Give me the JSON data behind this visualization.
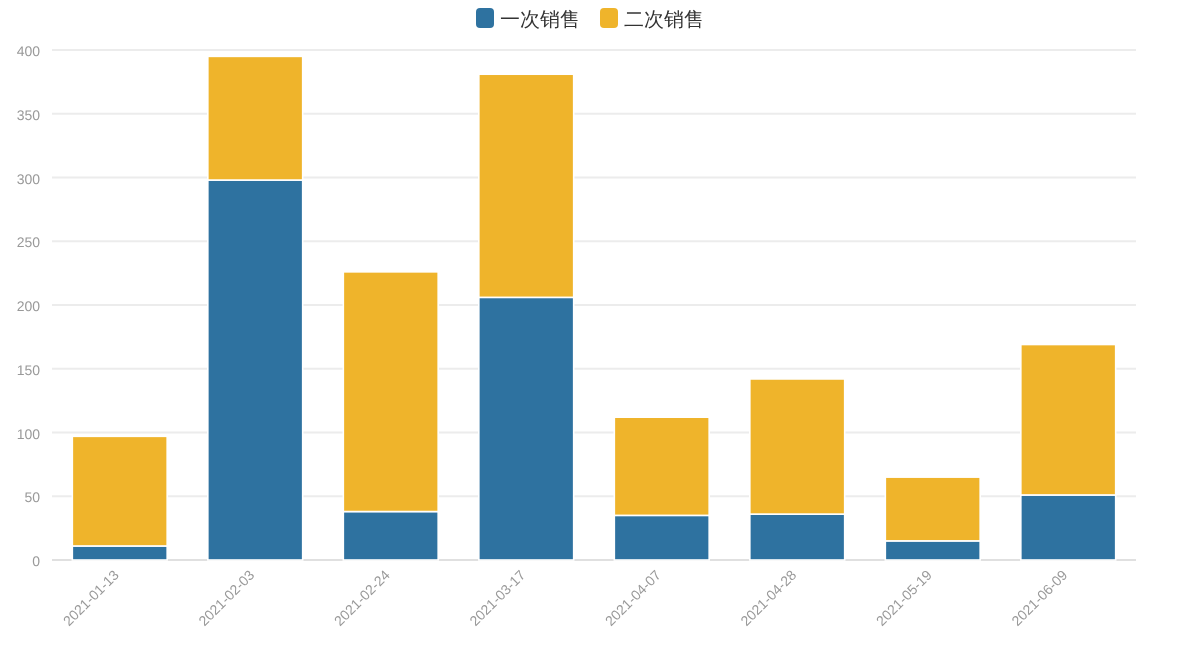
{
  "chart_data": {
    "type": "bar",
    "stacked": true,
    "categories": [
      "2021-01-13",
      "2021-02-03",
      "2021-02-24",
      "2021-03-17",
      "2021-04-07",
      "2021-04-28",
      "2021-05-19",
      "2021-06-09"
    ],
    "series": [
      {
        "name": "一次销售",
        "color": "#2e72a0",
        "values": [
          11,
          298,
          38,
          206,
          35,
          36,
          15,
          51
        ]
      },
      {
        "name": "二次销售",
        "color": "#efb42b",
        "values": [
          86,
          97,
          188,
          175,
          77,
          106,
          50,
          118
        ]
      }
    ],
    "ylim": [
      0,
      400
    ],
    "yticks": [
      0,
      50,
      100,
      150,
      200,
      250,
      300,
      350,
      400
    ],
    "grid": "y",
    "legend": "top"
  }
}
